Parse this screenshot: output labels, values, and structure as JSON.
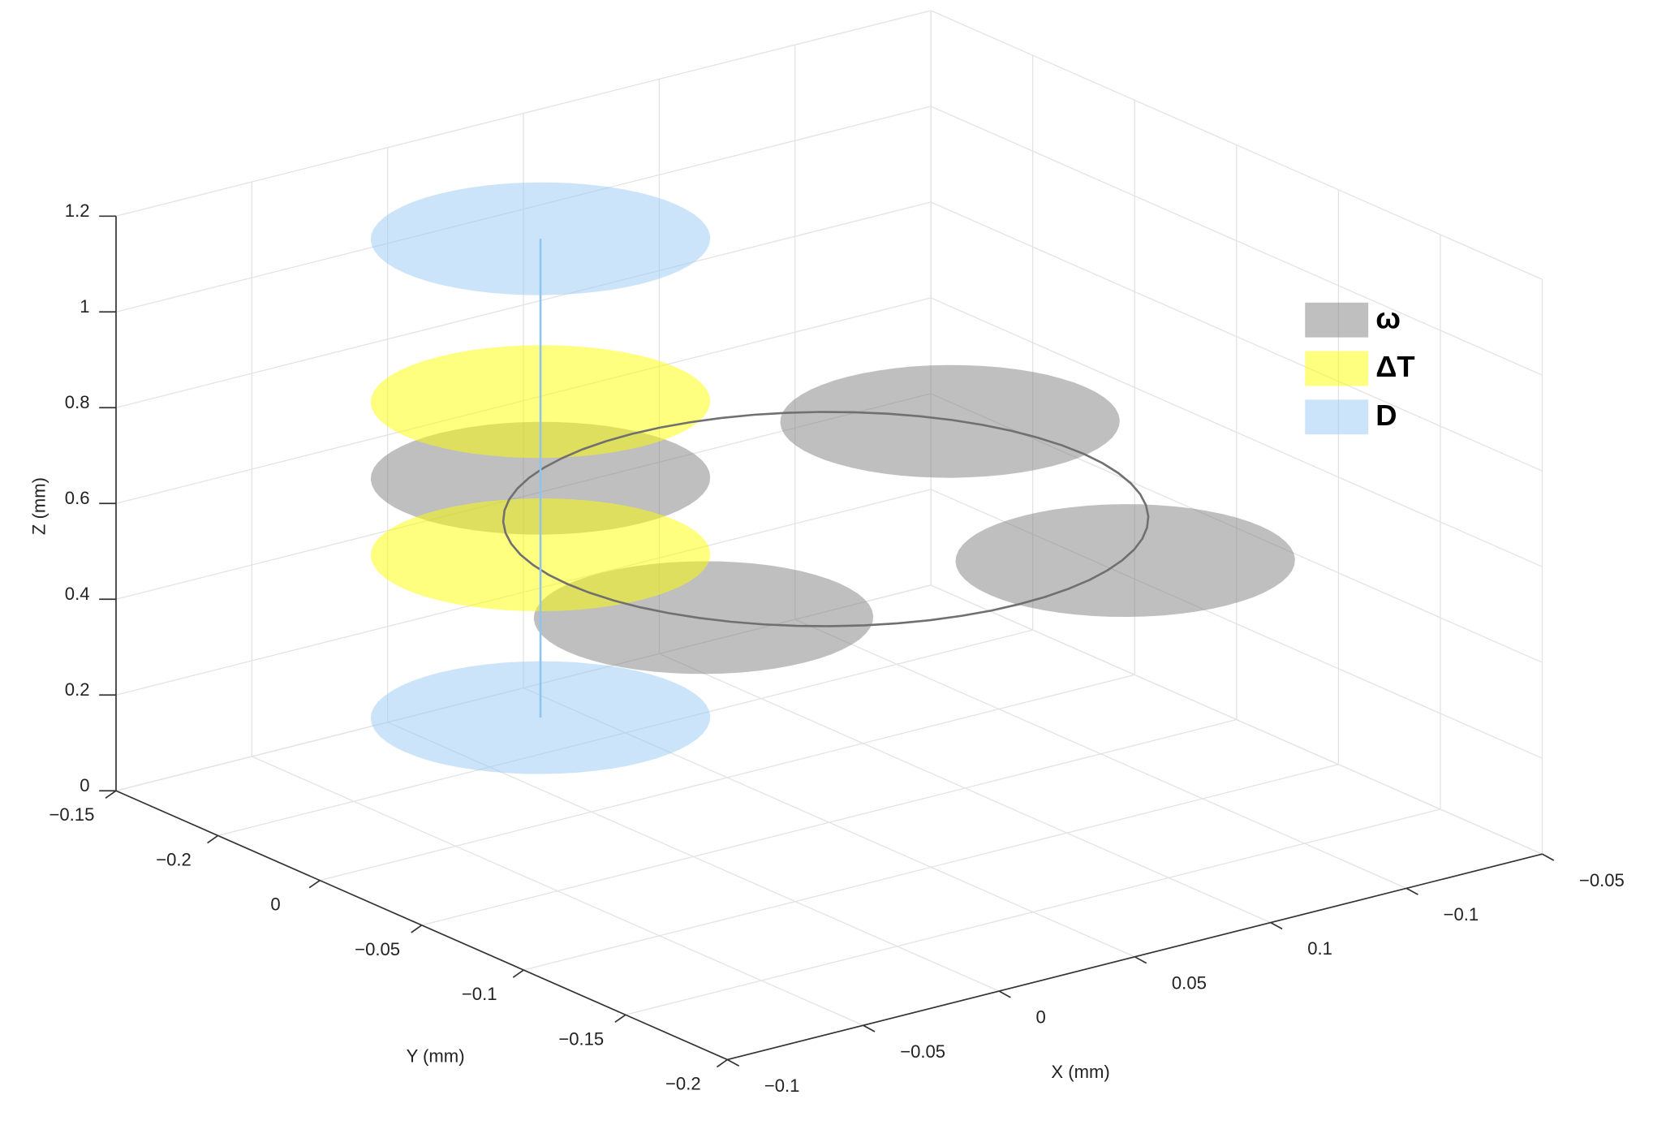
{
  "chart_data": {
    "type": "disk3d",
    "xlabel": "X (mm)",
    "ylabel": "Y (mm)",
    "zlabel": "Z (mm)",
    "xlim": [
      -0.1,
      0.2
    ],
    "ylim": [
      0.15,
      -0.15
    ],
    "zlim": [
      0,
      1.2
    ],
    "xticks": [
      {
        "value": -0.1,
        "label": "−0.1"
      },
      {
        "value": -0.05,
        "label": "−0.05"
      },
      0,
      {
        "value": 0.05,
        "label": "0.05"
      },
      {
        "value": 0.1,
        "label": "0.1"
      },
      {
        "value": -0.1,
        "label": "−0.1"
      },
      {
        "value": -0.05,
        "label": "−0.05"
      }
    ],
    "yticks": [
      {
        "value": -0.15,
        "label": "−0.15"
      },
      {
        "value": -0.2,
        "label": "−0.2"
      },
      0,
      {
        "value": -0.05,
        "label": "−0.05"
      },
      {
        "value": -0.1,
        "label": "−0.1"
      },
      {
        "value": -0.15,
        "label": "−0.15"
      },
      {
        "value": -0.2,
        "label": "−0.2"
      }
    ],
    "zticks": [
      0,
      0.2,
      0.4,
      0.6,
      0.8,
      1,
      1.2
    ],
    "grid": true,
    "legend": "upper right",
    "series": [
      {
        "name": "ω",
        "color": "#808080",
        "alpha": 0.5,
        "radius": 0.05,
        "x": [
          0,
          0.126,
          0.093,
          -0.036
        ],
        "y": [
          0.075,
          0.042,
          -0.088,
          -0.053
        ],
        "z": [
          0.65,
          0.65,
          0.65,
          0.65
        ]
      },
      {
        "name": "ΔT",
        "color": "#ffff00",
        "alpha": 0.5,
        "radius": 0.05,
        "x": [
          0,
          0
        ],
        "y": [
          0.075,
          0.075
        ],
        "z": [
          0.81,
          0.49
        ]
      },
      {
        "name": "D",
        "color": "#99c9f5",
        "alpha": 0.5,
        "radius": 0.05,
        "x": [
          0,
          0
        ],
        "y": [
          0.075,
          0.075
        ],
        "z": [
          1.15,
          0.15
        ]
      }
    ],
    "ring": {
      "color": "#707070",
      "center": [
        0.045,
        -0.005
      ],
      "radius": 0.095,
      "z": 0.65
    },
    "line": {
      "color": "#8ec5f0",
      "x": [
        0,
        0
      ],
      "y": [
        0.075,
        0.075
      ],
      "z": [
        0.15,
        1.15
      ]
    }
  }
}
